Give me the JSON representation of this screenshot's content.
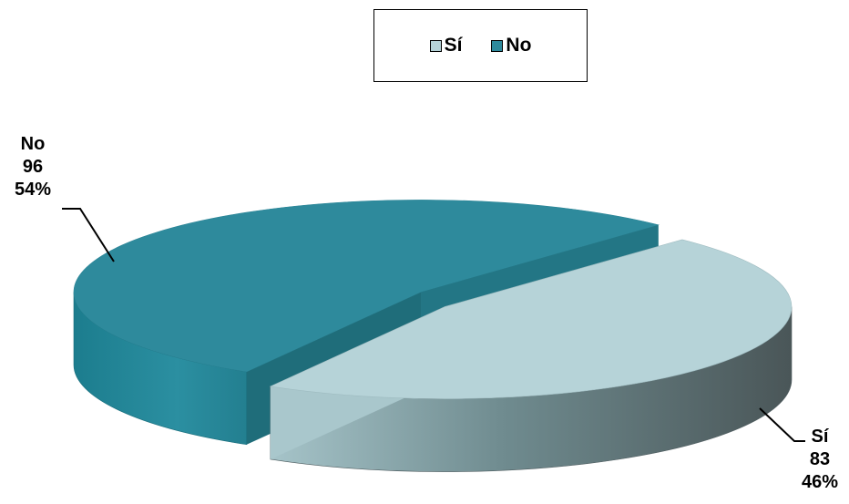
{
  "chart_data": {
    "type": "pie",
    "title": "",
    "categories": [
      "Sí",
      "No"
    ],
    "values": [
      83,
      96
    ],
    "percentages": [
      "46%",
      "54%"
    ],
    "colors": [
      "#b6d3d8",
      "#2e8a9c"
    ],
    "style": "3d-exploded",
    "legend_position": "top-center",
    "legend": [
      {
        "label": "Sí",
        "color": "#b6d3d8"
      },
      {
        "label": "No",
        "color": "#2e8a9c"
      }
    ],
    "data_labels": [
      {
        "category": "Sí",
        "value": "83",
        "percent": "46%"
      },
      {
        "category": "No",
        "value": "96",
        "percent": "54%"
      }
    ]
  }
}
